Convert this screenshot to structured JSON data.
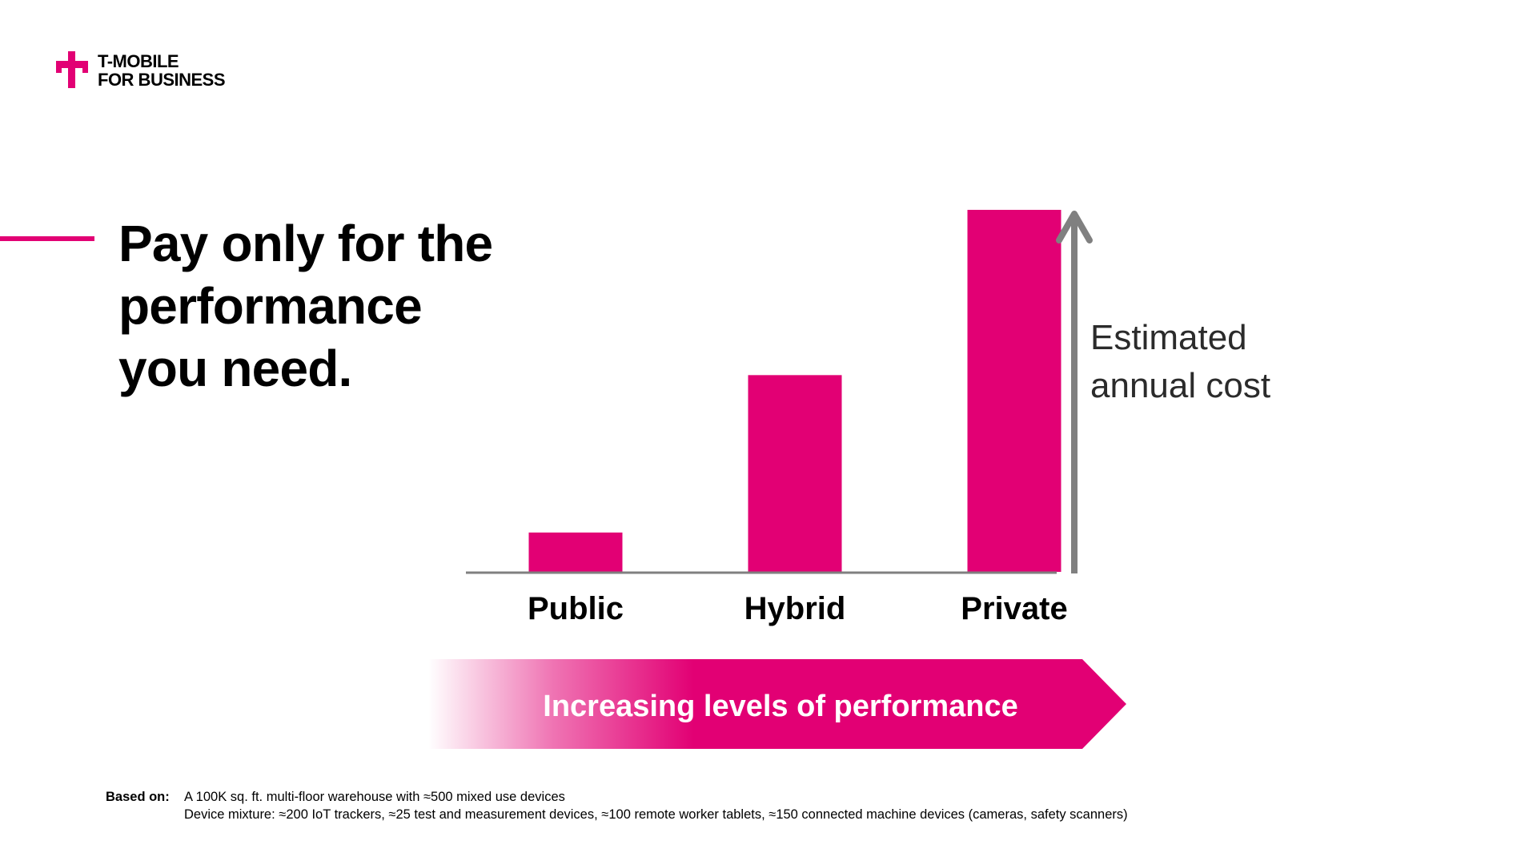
{
  "brand": {
    "line1": "T-MOBILE",
    "line2": "FOR BUSINESS",
    "color": "#e20074"
  },
  "headline": {
    "line1": "Pay only for the",
    "line2": "performance",
    "line3": "you need."
  },
  "chart_data": {
    "type": "bar",
    "categories": [
      "Public",
      "Hybrid",
      "Private"
    ],
    "values": [
      1,
      5,
      9.2
    ],
    "ylim": [
      0,
      9.2
    ],
    "ylabel_lines": [
      "Estimated",
      "annual cost"
    ],
    "grid": false,
    "bar_color": "#e20074",
    "axis_color": "#808080",
    "performance_arrow_label": "Increasing levels of performance"
  },
  "footnote": {
    "label": "Based on:",
    "line1": "A 100K sq. ft. multi-floor warehouse with ≈500 mixed use devices",
    "line2": "Device mixture: ≈200 IoT trackers, ≈25 test and measurement devices, ≈100 remote worker tablets, ≈150 connected machine devices (cameras, safety scanners)"
  }
}
